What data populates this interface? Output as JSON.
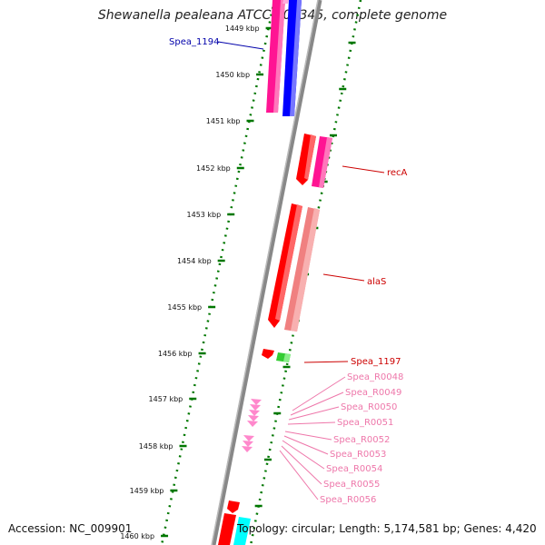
{
  "title": "Shewanella pealeana ATCC 700345, complete genome",
  "accession": "Accession: NC_009901",
  "summary": "Topology: circular; Length: 5,174,581 bp; Genes: 4,420",
  "colors": {
    "forward_cds": "#ff1493",
    "forward_cds_alt": "#0000ff",
    "reverse_cds": "#ff0000",
    "reverse_cds_light": "#f08080",
    "rna": "#ff88cc",
    "trna": "#33cc33",
    "other": "#00ffff",
    "backbone": "#888888",
    "tick_dots": "#007700"
  },
  "ticks": [
    "1449 kbp",
    "1450 kbp",
    "1451 kbp",
    "1452 kbp",
    "1453 kbp",
    "1454 kbp",
    "1455 kbp",
    "1456 kbp",
    "1457 kbp",
    "1458 kbp",
    "1459 kbp",
    "1460 kbp"
  ],
  "labels": [
    {
      "text": "Spea_1194",
      "color": "#0000aa"
    },
    {
      "text": "recA",
      "color": "#cc0000"
    },
    {
      "text": "alaS",
      "color": "#cc0000"
    },
    {
      "text": "Spea_1197",
      "color": "#cc0000"
    },
    {
      "text": "Spea_R0048",
      "color": "#ee77aa"
    },
    {
      "text": "Spea_R0049",
      "color": "#ee77aa"
    },
    {
      "text": "Spea_R0050",
      "color": "#ee77aa"
    },
    {
      "text": "Spea_R0051",
      "color": "#ee77aa"
    },
    {
      "text": "Spea_R0052",
      "color": "#ee77aa"
    },
    {
      "text": "Spea_R0053",
      "color": "#ee77aa"
    },
    {
      "text": "Spea_R0054",
      "color": "#ee77aa"
    },
    {
      "text": "Spea_R0055",
      "color": "#ee77aa"
    },
    {
      "text": "Spea_R0056",
      "color": "#ee77aa"
    }
  ]
}
